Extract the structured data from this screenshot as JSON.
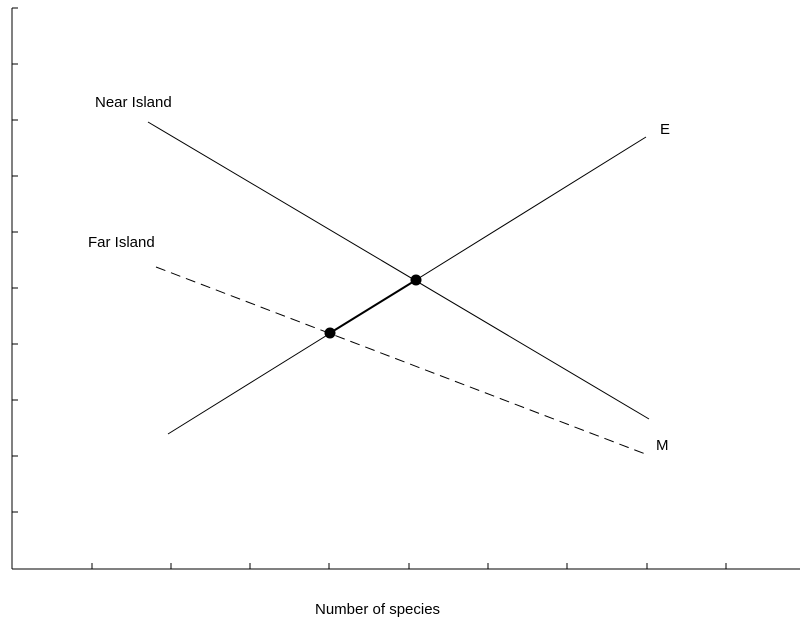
{
  "labels": {
    "near_island": "Near Island",
    "far_island": "Far Island",
    "extinction": "E",
    "immigration": "M",
    "x_axis": "Number of species"
  },
  "colors": {
    "line": "#000000",
    "background": "#ffffff"
  }
}
